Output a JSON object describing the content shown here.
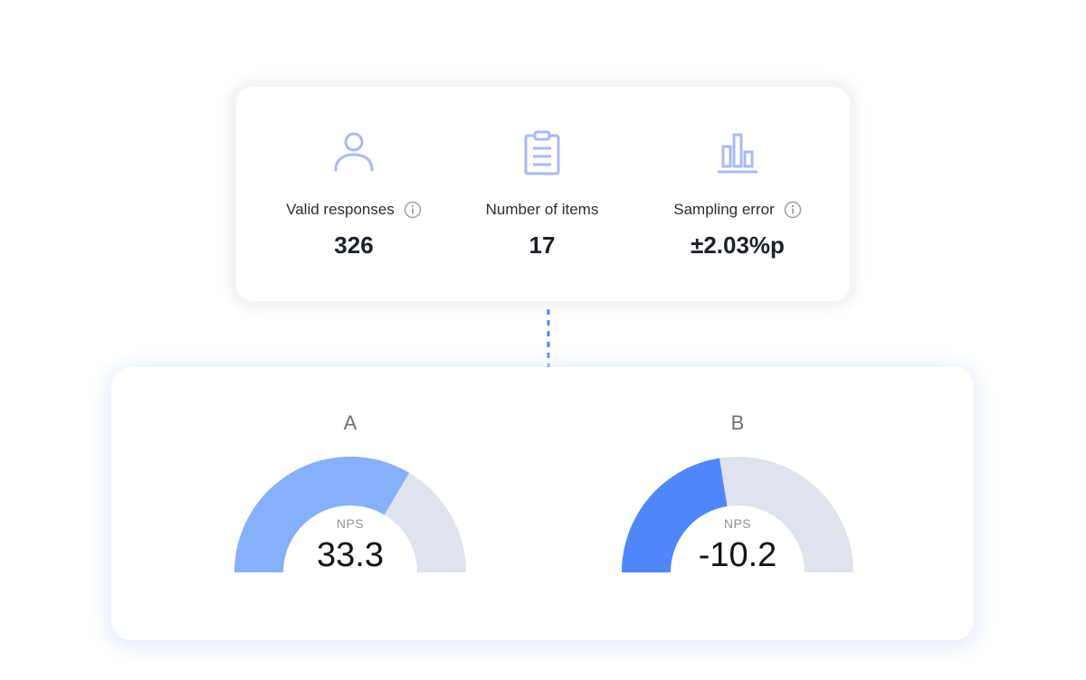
{
  "summary": {
    "items": [
      {
        "label": "Valid responses",
        "value": "326",
        "icon": "person-icon",
        "has_info": true
      },
      {
        "label": "Number of items",
        "value": "17",
        "icon": "clipboard-icon",
        "has_info": false
      },
      {
        "label": "Sampling error",
        "value": "±2.03%p",
        "icon": "bar-chart-icon",
        "has_info": true
      }
    ]
  },
  "gauges": [
    {
      "name": "A",
      "caption": "NPS",
      "value": "33.3",
      "fill_fraction": 0.67,
      "fill_color": "#86b0fc"
    },
    {
      "name": "B",
      "caption": "NPS",
      "value": "-10.2",
      "fill_fraction": 0.45,
      "fill_color": "#4f87fb"
    }
  ],
  "colors": {
    "icon_stroke": "#aab9f8",
    "info_icon": "#9aa0a8",
    "gauge_track": "#e0e3ed",
    "connector": "#4f87fb"
  }
}
